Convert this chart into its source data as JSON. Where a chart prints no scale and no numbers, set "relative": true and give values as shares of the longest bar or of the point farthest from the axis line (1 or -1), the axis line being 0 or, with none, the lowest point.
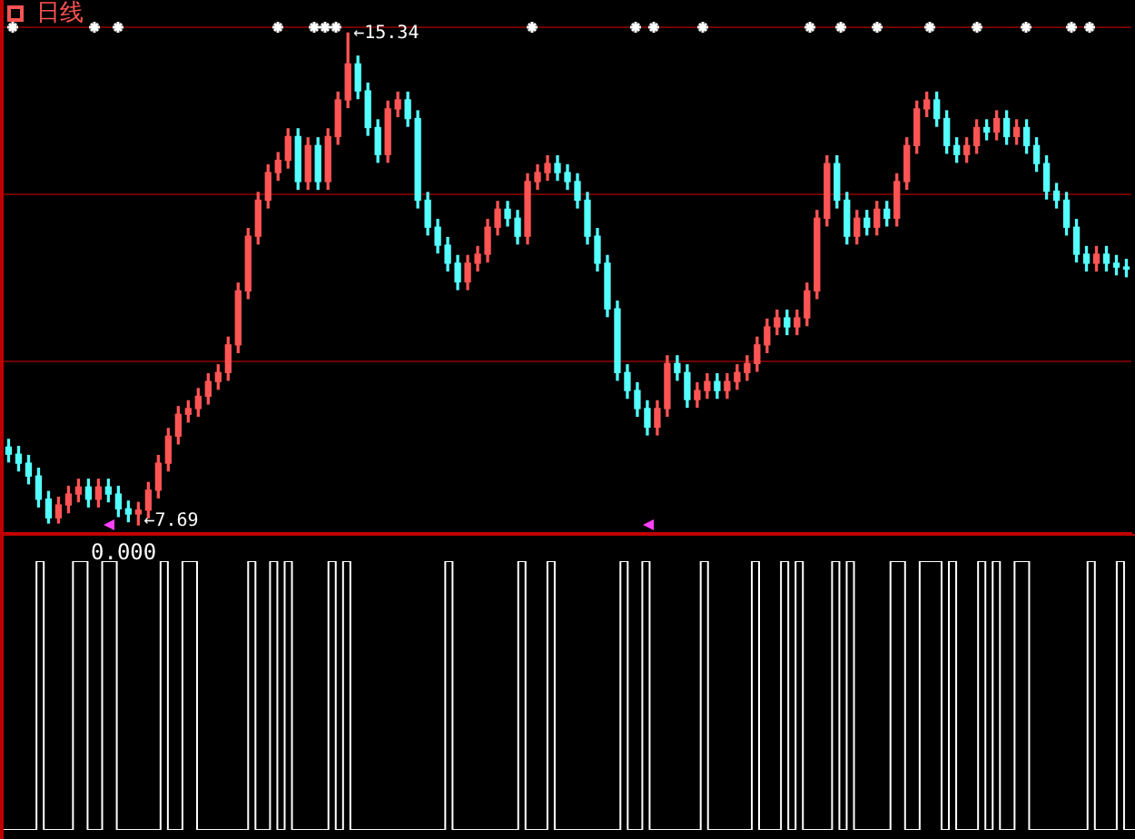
{
  "chart_data": [
    {
      "type": "candlestick",
      "title": "日线",
      "categories": [
        null,
        null,
        null,
        null,
        null,
        null,
        null,
        null,
        null,
        null,
        null,
        null,
        null,
        null,
        null,
        null,
        null,
        null,
        null,
        null,
        null,
        null,
        null,
        null,
        null,
        null,
        null,
        null,
        null,
        null,
        null,
        null,
        null,
        null,
        null,
        null,
        null,
        null,
        null,
        null,
        null,
        null,
        null,
        null,
        null,
        null,
        null,
        null,
        null,
        null,
        null,
        null,
        null,
        null,
        null,
        null,
        null,
        null,
        null,
        null,
        null,
        null,
        null,
        null,
        null,
        null,
        null,
        null,
        null,
        null,
        null,
        null,
        null,
        null,
        null,
        null,
        null,
        null,
        null,
        null,
        null,
        null,
        null,
        null,
        null,
        null,
        null,
        null,
        null,
        null,
        null,
        null,
        null,
        null,
        null,
        null,
        null,
        null,
        null,
        null,
        null,
        null,
        null,
        null,
        null,
        null,
        null,
        null,
        null,
        null,
        null,
        null,
        null
      ],
      "ohlc": [
        [
          8.9,
          9.02,
          8.67,
          8.79
        ],
        [
          8.79,
          8.91,
          8.53,
          8.65
        ],
        [
          8.65,
          8.77,
          8.33,
          8.45
        ],
        [
          8.45,
          8.57,
          7.97,
          8.09
        ],
        [
          8.09,
          8.21,
          7.72,
          7.8
        ],
        [
          7.8,
          8.12,
          7.72,
          8.0
        ],
        [
          8.0,
          8.29,
          7.88,
          8.17
        ],
        [
          8.17,
          8.4,
          8.05,
          8.28
        ],
        [
          8.28,
          8.4,
          7.97,
          8.09
        ],
        [
          8.09,
          8.4,
          7.97,
          8.28
        ],
        [
          8.28,
          8.4,
          8.05,
          8.17
        ],
        [
          8.17,
          8.29,
          7.82,
          7.94
        ],
        [
          7.94,
          8.06,
          7.74,
          7.86
        ],
        [
          7.86,
          8.04,
          7.69,
          7.92
        ],
        [
          7.92,
          8.35,
          7.8,
          8.23
        ],
        [
          8.23,
          8.77,
          8.11,
          8.65
        ],
        [
          8.65,
          9.19,
          8.53,
          9.07
        ],
        [
          9.07,
          9.53,
          8.95,
          9.41
        ],
        [
          9.41,
          9.62,
          9.29,
          9.5
        ],
        [
          9.5,
          9.81,
          9.38,
          9.69
        ],
        [
          9.69,
          10.04,
          9.57,
          9.92
        ],
        [
          9.92,
          10.18,
          9.8,
          10.06
        ],
        [
          10.06,
          10.61,
          9.94,
          10.49
        ],
        [
          10.49,
          11.45,
          10.37,
          11.33
        ],
        [
          11.33,
          12.3,
          11.21,
          12.18
        ],
        [
          12.18,
          12.86,
          12.06,
          12.74
        ],
        [
          12.74,
          13.29,
          12.62,
          13.17
        ],
        [
          13.17,
          13.48,
          13.05,
          13.36
        ],
        [
          13.36,
          13.85,
          13.24,
          13.73
        ],
        [
          13.73,
          13.85,
          12.91,
          13.03
        ],
        [
          13.03,
          13.71,
          12.91,
          13.59
        ],
        [
          13.59,
          13.71,
          12.91,
          13.03
        ],
        [
          13.03,
          13.85,
          12.91,
          13.73
        ],
        [
          13.73,
          14.42,
          13.61,
          14.3
        ],
        [
          14.3,
          15.34,
          14.18,
          14.86
        ],
        [
          14.86,
          14.98,
          14.32,
          14.44
        ],
        [
          14.44,
          14.56,
          13.75,
          13.87
        ],
        [
          13.87,
          13.99,
          13.33,
          13.45
        ],
        [
          13.45,
          14.28,
          13.33,
          14.16
        ],
        [
          14.16,
          14.42,
          14.04,
          14.3
        ],
        [
          14.3,
          14.42,
          13.89,
          14.01
        ],
        [
          14.01,
          14.13,
          12.62,
          12.74
        ],
        [
          12.74,
          12.86,
          12.2,
          12.32
        ],
        [
          12.32,
          12.44,
          11.92,
          12.04
        ],
        [
          12.04,
          12.16,
          11.64,
          11.76
        ],
        [
          11.76,
          11.88,
          11.35,
          11.47
        ],
        [
          11.47,
          11.88,
          11.35,
          11.76
        ],
        [
          11.76,
          12.02,
          11.64,
          11.9
        ],
        [
          11.9,
          12.44,
          11.78,
          12.32
        ],
        [
          12.32,
          12.72,
          12.2,
          12.6
        ],
        [
          12.6,
          12.72,
          12.34,
          12.46
        ],
        [
          12.46,
          12.58,
          12.06,
          12.18
        ],
        [
          12.18,
          13.15,
          12.06,
          13.03
        ],
        [
          13.03,
          13.29,
          12.91,
          13.17
        ],
        [
          13.17,
          13.43,
          13.05,
          13.31
        ],
        [
          13.31,
          13.43,
          13.05,
          13.17
        ],
        [
          13.17,
          13.29,
          12.91,
          13.03
        ],
        [
          13.03,
          13.15,
          12.62,
          12.74
        ],
        [
          12.74,
          12.86,
          12.06,
          12.18
        ],
        [
          12.18,
          12.3,
          11.64,
          11.76
        ],
        [
          11.76,
          11.88,
          10.93,
          11.05
        ],
        [
          11.05,
          11.17,
          9.94,
          10.06
        ],
        [
          10.06,
          10.18,
          9.66,
          9.78
        ],
        [
          9.78,
          9.9,
          9.38,
          9.5
        ],
        [
          9.5,
          9.62,
          9.09,
          9.21
        ],
        [
          9.21,
          9.62,
          9.09,
          9.5
        ],
        [
          9.5,
          10.32,
          9.38,
          10.2
        ],
        [
          10.2,
          10.32,
          9.94,
          10.06
        ],
        [
          10.06,
          10.18,
          9.52,
          9.64
        ],
        [
          9.64,
          9.9,
          9.52,
          9.78
        ],
        [
          9.78,
          10.04,
          9.66,
          9.92
        ],
        [
          9.92,
          10.04,
          9.66,
          9.78
        ],
        [
          9.78,
          10.04,
          9.66,
          9.92
        ],
        [
          9.92,
          10.18,
          9.8,
          10.06
        ],
        [
          10.06,
          10.32,
          9.94,
          10.2
        ],
        [
          10.2,
          10.61,
          10.08,
          10.49
        ],
        [
          10.49,
          10.89,
          10.37,
          10.77
        ],
        [
          10.77,
          11.03,
          10.65,
          10.91
        ],
        [
          10.91,
          11.03,
          10.65,
          10.77
        ],
        [
          10.77,
          11.03,
          10.65,
          10.91
        ],
        [
          10.91,
          11.45,
          10.79,
          11.33
        ],
        [
          11.33,
          12.58,
          11.21,
          12.46
        ],
        [
          12.46,
          13.43,
          12.34,
          13.31
        ],
        [
          13.31,
          13.43,
          12.62,
          12.74
        ],
        [
          12.74,
          12.86,
          12.06,
          12.18
        ],
        [
          12.18,
          12.58,
          12.06,
          12.46
        ],
        [
          12.46,
          12.58,
          12.2,
          12.32
        ],
        [
          12.32,
          12.72,
          12.2,
          12.6
        ],
        [
          12.6,
          12.72,
          12.34,
          12.46
        ],
        [
          12.46,
          13.15,
          12.34,
          13.03
        ],
        [
          13.03,
          13.71,
          12.91,
          13.59
        ],
        [
          13.59,
          14.28,
          13.47,
          14.16
        ],
        [
          14.16,
          14.42,
          14.04,
          14.3
        ],
        [
          14.3,
          14.42,
          13.89,
          14.01
        ],
        [
          14.01,
          14.13,
          13.47,
          13.59
        ],
        [
          13.59,
          13.71,
          13.33,
          13.45
        ],
        [
          13.45,
          13.71,
          13.33,
          13.59
        ],
        [
          13.59,
          13.99,
          13.47,
          13.87
        ],
        [
          13.87,
          13.99,
          13.68,
          13.8
        ],
        [
          13.8,
          14.13,
          13.68,
          14.01
        ],
        [
          14.01,
          14.13,
          13.61,
          13.73
        ],
        [
          13.73,
          13.99,
          13.61,
          13.87
        ],
        [
          13.87,
          13.99,
          13.47,
          13.59
        ],
        [
          13.59,
          13.71,
          13.19,
          13.31
        ],
        [
          13.31,
          13.43,
          12.76,
          12.88
        ],
        [
          12.88,
          13.0,
          12.62,
          12.74
        ],
        [
          12.74,
          12.86,
          12.2,
          12.32
        ],
        [
          12.32,
          12.44,
          11.78,
          11.9
        ],
        [
          11.9,
          12.02,
          11.64,
          11.76
        ],
        [
          11.76,
          12.02,
          11.64,
          11.9
        ],
        [
          11.9,
          12.02,
          11.64,
          11.76
        ],
        [
          11.76,
          11.88,
          11.58,
          11.7
        ],
        [
          11.7,
          11.82,
          11.55,
          11.67
        ]
      ],
      "colors": [
        "#54ffff",
        "#54ffff",
        "#54ffff",
        "#54ffff",
        "#54ffff",
        "#ff5454",
        "#ff5454",
        "#ff5454",
        "#54ffff",
        "#ff5454",
        "#54ffff",
        "#54ffff",
        "#54ffff",
        "#ff5454",
        "#ff5454",
        "#ff5454",
        "#ff5454",
        "#ff5454",
        "#ff5454",
        "#ff5454",
        "#ff5454",
        "#ff5454",
        "#ff5454",
        "#ff5454",
        "#ff5454",
        "#ff5454",
        "#ff5454",
        "#ff5454",
        "#ff5454",
        "#54ffff",
        "#ff5454",
        "#54ffff",
        "#ff5454",
        "#ff5454",
        "#ff5454",
        "#54ffff",
        "#54ffff",
        "#54ffff",
        "#ff5454",
        "#ff5454",
        "#54ffff",
        "#54ffff",
        "#54ffff",
        "#54ffff",
        "#54ffff",
        "#54ffff",
        "#ff5454",
        "#ff5454",
        "#ff5454",
        "#ff5454",
        "#54ffff",
        "#54ffff",
        "#ff5454",
        "#ff5454",
        "#ff5454",
        "#54ffff",
        "#54ffff",
        "#54ffff",
        "#54ffff",
        "#54ffff",
        "#54ffff",
        "#54ffff",
        "#54ffff",
        "#54ffff",
        "#54ffff",
        "#ff5454",
        "#ff5454",
        "#54ffff",
        "#54ffff",
        "#ff5454",
        "#ff5454",
        "#54ffff",
        "#ff5454",
        "#ff5454",
        "#ff5454",
        "#ff5454",
        "#ff5454",
        "#ff5454",
        "#54ffff",
        "#ff5454",
        "#ff5454",
        "#ff5454",
        "#ff5454",
        "#54ffff",
        "#54ffff",
        "#ff5454",
        "#54ffff",
        "#ff5454",
        "#54ffff",
        "#ff5454",
        "#ff5454",
        "#ff5454",
        "#ff5454",
        "#54ffff",
        "#54ffff",
        "#54ffff",
        "#ff5454",
        "#ff5454",
        "#54ffff",
        "#ff5454",
        "#54ffff",
        "#ff5454",
        "#54ffff",
        "#54ffff",
        "#54ffff",
        "#54ffff",
        "#54ffff",
        "#54ffff",
        "#54ffff",
        "#ff5454",
        "#54ffff",
        "#54ffff",
        "#54ffff"
      ],
      "ylim": [
        7.55,
        15.43
      ],
      "yticks": [
        {
          "value": 10.23,
          "label": null
        },
        {
          "value": 12.83,
          "label": null
        },
        {
          "value": 15.43,
          "label": null
        }
      ],
      "grid": true,
      "annotations": [
        "←15.34",
        "←7.69"
      ]
    },
    {
      "type": "step",
      "relative": true,
      "color": "#ffffff",
      "categories": [
        null,
        null,
        null,
        null,
        null,
        null,
        null,
        null,
        null,
        null,
        null,
        null,
        null,
        null,
        null,
        null,
        null,
        null,
        null,
        null,
        null,
        null,
        null,
        null,
        null,
        null,
        null,
        null,
        null,
        null,
        null,
        null,
        null,
        null,
        null,
        null,
        null,
        null,
        null,
        null,
        null,
        null,
        null,
        null,
        null,
        null,
        null,
        null,
        null,
        null,
        null,
        null,
        null,
        null,
        null,
        null,
        null,
        null,
        null,
        null,
        null,
        null,
        null,
        null,
        null,
        null,
        null,
        null,
        null,
        null,
        null,
        null,
        null,
        null,
        null,
        null,
        null,
        null,
        null,
        null,
        null,
        null,
        null,
        null,
        null,
        null,
        null,
        null,
        null,
        null,
        null,
        null,
        null,
        null,
        null,
        null,
        null,
        null,
        null,
        null,
        null,
        null,
        null,
        null,
        null,
        null,
        null,
        null,
        null,
        null,
        null,
        null,
        null,
        null,
        null,
        null,
        null,
        null,
        null,
        null,
        null,
        null,
        null,
        null,
        null,
        null,
        null,
        null,
        null,
        null,
        null,
        null,
        null,
        null,
        null,
        null,
        null,
        null,
        null,
        null,
        null,
        null,
        null,
        null,
        null,
        null,
        null,
        null,
        null,
        null,
        null,
        null,
        null,
        null,
        null,
        null
      ],
      "values": [
        0,
        0,
        0,
        0,
        0,
        1,
        0,
        0,
        0,
        0,
        1,
        1,
        0,
        0,
        1,
        1,
        0,
        0,
        0,
        0,
        0,
        0,
        1,
        0,
        0,
        1,
        1,
        0,
        0,
        0,
        0,
        0,
        0,
        0,
        1,
        0,
        0,
        1,
        0,
        1,
        0,
        0,
        0,
        0,
        0,
        1,
        0,
        1,
        0,
        0,
        0,
        0,
        0,
        0,
        0,
        0,
        0,
        0,
        0,
        0,
        0,
        1,
        0,
        0,
        0,
        0,
        0,
        0,
        0,
        0,
        0,
        1,
        0,
        0,
        0,
        1,
        0,
        0,
        0,
        0,
        0,
        0,
        0,
        0,
        0,
        1,
        0,
        0,
        1,
        0,
        0,
        0,
        0,
        0,
        0,
        0,
        1,
        0,
        0,
        0,
        0,
        0,
        0,
        1,
        0,
        0,
        0,
        1,
        0,
        1,
        0,
        0,
        0,
        0,
        1,
        0,
        1,
        0,
        0,
        0,
        0,
        0,
        1,
        1,
        0,
        0,
        1,
        1,
        1,
        0,
        1,
        0,
        0,
        0,
        1,
        0,
        1,
        0,
        0,
        1,
        1,
        0,
        0,
        0,
        0,
        0,
        0,
        0,
        0,
        1,
        0,
        0,
        0,
        1,
        0,
        0
      ],
      "annotations": [
        "0.000"
      ]
    }
  ]
}
